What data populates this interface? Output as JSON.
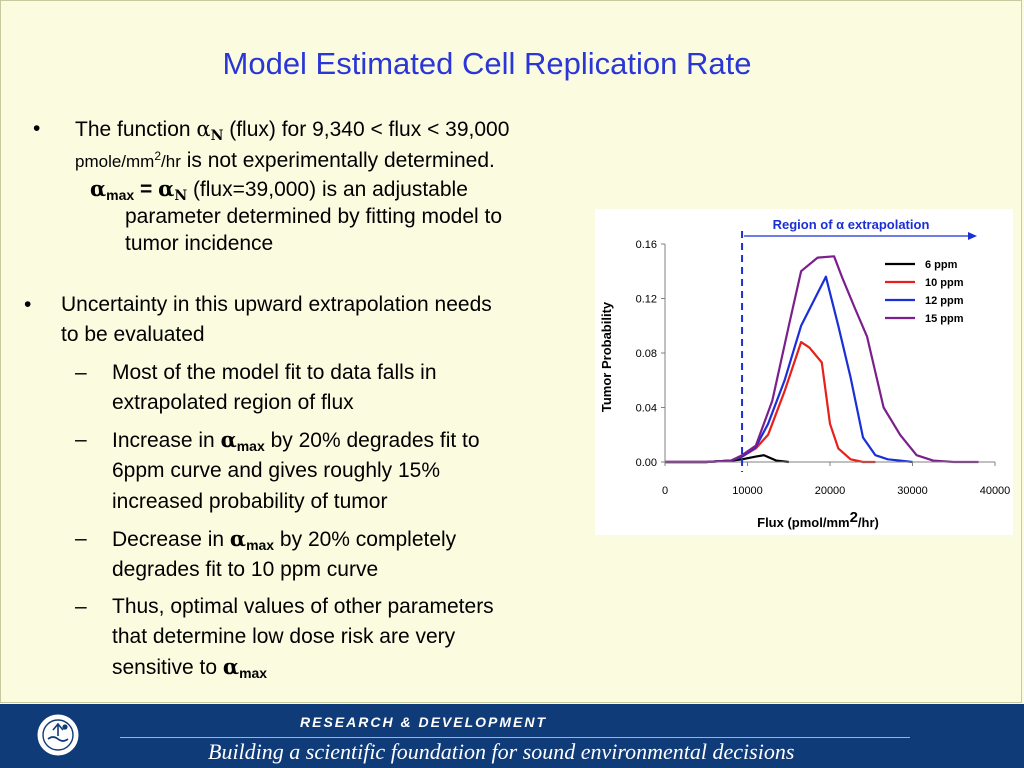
{
  "slide": {
    "title": "Model Estimated Cell Replication Rate",
    "bullet1": {
      "line1_pre": "The function ",
      "alpha": "α",
      "sub_n": "N",
      "line1_post": " (flux) for 9,340 < flux < 39,000",
      "unit_pre": "pmole/mm",
      "unit_sup": "2",
      "unit_post": "/hr",
      "line2_post": " is not experimentally determined.",
      "sub_alpha": "α",
      "sub_max": "max",
      "sub_eq": " = ",
      "sub_alpha2": "α",
      "sub_n2": "N",
      "sub_rest1": " (flux=39,000) is an adjustable",
      "sub_rest2": "parameter determined by fitting model to",
      "sub_rest3": "tumor incidence"
    },
    "bullet2": {
      "line1": "Uncertainty in this upward extrapolation needs",
      "line2": "to be evaluated",
      "dash": "–",
      "s1_l1": "Most of the model fit to data falls in",
      "s1_l2": "extrapolated region of flux",
      "s2_pre": "Increase in ",
      "s2_alpha": "α",
      "s2_max": "max",
      "s2_post": " by 20% degrades fit to",
      "s2_l2": "6ppm curve and gives roughly 15%",
      "s2_l3": "increased probability of tumor",
      "s3_pre": "Decrease in ",
      "s3_alpha": "α",
      "s3_max": "max",
      "s3_post": " by 20% completely",
      "s3_l2": "degrades fit to 10 ppm curve",
      "s4_l1": "Thus, optimal values of other parameters",
      "s4_l2": "that determine low dose risk are very",
      "s4_l3_pre": "sensitive to ",
      "s4_alpha": "α",
      "s4_max": "max"
    }
  },
  "chart_data": {
    "type": "line",
    "annotation": "Region of α extrapolation",
    "annotation_x": 9340,
    "xlabel_pre": "Flux (pmol/mm",
    "xlabel_sup": "2",
    "xlabel_post": "/hr)",
    "ylabel": "Tumor Probability",
    "xlim": [
      0,
      40000
    ],
    "ylim": [
      0,
      0.16
    ],
    "xticks": [
      0,
      10000,
      20000,
      30000,
      40000
    ],
    "xtick_labels": [
      "0",
      "10000",
      "20000",
      "30000",
      "40000"
    ],
    "yticks": [
      0,
      0.04,
      0.08,
      0.12,
      0.16
    ],
    "ytick_labels": [
      "0.00",
      "0.04",
      "0.08",
      "0.12",
      "0.16"
    ],
    "grid": false,
    "legend_position": "top-right",
    "series": [
      {
        "name": "6 ppm",
        "color": "#000000",
        "x": [
          0,
          5000,
          8000,
          9340,
          11000,
          12000,
          13500,
          15000
        ],
        "y": [
          0,
          0,
          0.001,
          0.002,
          0.004,
          0.005,
          0.001,
          0
        ]
      },
      {
        "name": "10 ppm",
        "color": "#e8201b",
        "x": [
          0,
          5000,
          8000,
          9340,
          11000,
          12500,
          14500,
          16500,
          17500,
          19000,
          20000,
          21000,
          22500,
          24000,
          25500
        ],
        "y": [
          0,
          0,
          0.001,
          0.004,
          0.01,
          0.02,
          0.052,
          0.088,
          0.084,
          0.073,
          0.028,
          0.01,
          0.002,
          0,
          0
        ]
      },
      {
        "name": "12 ppm",
        "color": "#1a2fd6",
        "x": [
          0,
          5000,
          8000,
          9340,
          11000,
          12500,
          14500,
          16500,
          18000,
          19500,
          21000,
          22500,
          24000,
          25500,
          27000,
          28500,
          30000
        ],
        "y": [
          0,
          0,
          0.001,
          0.004,
          0.011,
          0.028,
          0.06,
          0.1,
          0.118,
          0.136,
          0.1,
          0.062,
          0.018,
          0.005,
          0.002,
          0.001,
          0
        ]
      },
      {
        "name": "15 ppm",
        "color": "#7a1f8c",
        "x": [
          0,
          5000,
          8000,
          9340,
          11000,
          13000,
          15000,
          16500,
          18500,
          20500,
          21500,
          23000,
          24500,
          26500,
          28500,
          30500,
          32500,
          35000,
          38000
        ],
        "y": [
          0,
          0,
          0.001,
          0.005,
          0.012,
          0.045,
          0.1,
          0.14,
          0.15,
          0.151,
          0.135,
          0.113,
          0.092,
          0.04,
          0.02,
          0.005,
          0.001,
          0,
          0
        ]
      }
    ]
  },
  "footer": {
    "top": "RESEARCH &  DEVELOPMENT",
    "bottom": "Building a scientific foundation for sound environmental decisions",
    "logo_icon": "epa-seal-icon"
  }
}
